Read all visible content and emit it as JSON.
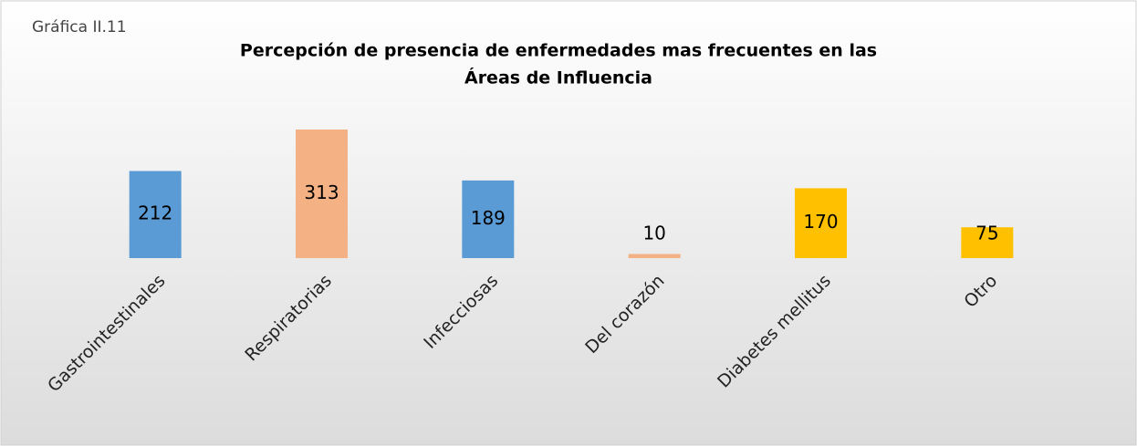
{
  "chart_data": {
    "type": "bar",
    "annotation": "Gráfica II.11",
    "title": [
      "Percepción de presencia de enfermedades mas frecuentes en las",
      "Áreas de Influencia"
    ],
    "categories": [
      "Gastrointestinales",
      "Respiratorias",
      "Infecciosas",
      "Del corazón",
      "Diabetes mellitus",
      "Otro"
    ],
    "values": [
      212,
      313,
      189,
      10,
      170,
      75
    ],
    "colors": [
      "#5b9bd5",
      "#f4b183",
      "#5b9bd5",
      "#f4b183",
      "#ffc000",
      "#ffc000"
    ]
  }
}
